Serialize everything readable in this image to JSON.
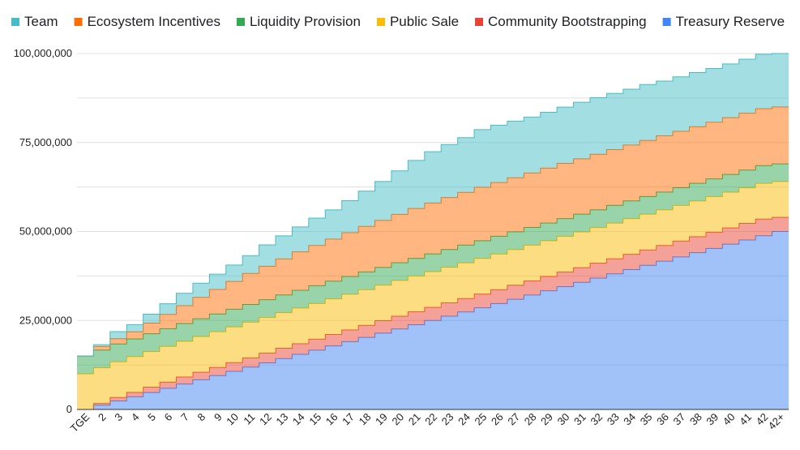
{
  "chart_data": {
    "type": "area",
    "stacked": true,
    "step": true,
    "categories": [
      "TGE",
      "2",
      "3",
      "4",
      "5",
      "6",
      "7",
      "8",
      "9",
      "10",
      "11",
      "12",
      "13",
      "14",
      "15",
      "16",
      "17",
      "18",
      "19",
      "20",
      "21",
      "22",
      "23",
      "24",
      "25",
      "26",
      "27",
      "28",
      "29",
      "30",
      "31",
      "32",
      "33",
      "34",
      "35",
      "36",
      "37",
      "38",
      "39",
      "40",
      "41",
      "42",
      "42+"
    ],
    "ylim": [
      0,
      100000000
    ],
    "yticks": [
      {
        "value": 0,
        "label": "0"
      },
      {
        "value": 25000000,
        "label": "25,000,000"
      },
      {
        "value": 50000000,
        "label": "50,000,000"
      },
      {
        "value": 75000000,
        "label": "75,000,000"
      },
      {
        "value": 100000000,
        "label": "100,000,000"
      }
    ],
    "grid": true,
    "legend_position": "top",
    "xlabel": "",
    "ylabel": "",
    "series": [
      {
        "name": "Treasury Reserve",
        "color": "#4285f4",
        "values": [
          0,
          1190476,
          2380952,
          3571429,
          4761905,
          5952381,
          7142857,
          8333333,
          9523810,
          10714286,
          11904762,
          13095238,
          14285714,
          15476190,
          16666667,
          17857143,
          19047619,
          20238095,
          21428571,
          22619048,
          23809524,
          25000000,
          26190476,
          27380952,
          28571429,
          29761905,
          30952381,
          32142857,
          33333333,
          34523810,
          35714286,
          36904762,
          38095238,
          39285714,
          40476190,
          41666667,
          42857143,
          44047619,
          45238095,
          46428571,
          47619048,
          48809524,
          50000000
        ]
      },
      {
        "name": "Community Bootstrapping",
        "color": "#ea4335",
        "values": [
          0,
          500000,
          1000000,
          1250000,
          1500000,
          1750000,
          2000000,
          2150000,
          2300000,
          2450000,
          2600000,
          2750000,
          2900000,
          3000000,
          3100000,
          3200000,
          3300000,
          3400000,
          3500000,
          3600000,
          3650000,
          3700000,
          3750000,
          3800000,
          3850000,
          3900000,
          3950000,
          4000000,
          4050000,
          4100000,
          4150000,
          4200000,
          4250000,
          4300000,
          4350000,
          4400000,
          4450000,
          4500000,
          4550000,
          4600000,
          4650000,
          4700000,
          4000000
        ]
      },
      {
        "name": "Public Sale",
        "color": "#fbbc04",
        "values": [
          10000000,
          10000000,
          10000000,
          10000000,
          10000000,
          10000000,
          10000000,
          10000000,
          10000000,
          10000000,
          10000000,
          10000000,
          10000000,
          10000000,
          10000000,
          10000000,
          10000000,
          10000000,
          10000000,
          10000000,
          10000000,
          10000000,
          10000000,
          10000000,
          10000000,
          10000000,
          10000000,
          10000000,
          10000000,
          10000000,
          10000000,
          10000000,
          10000000,
          10000000,
          10000000,
          10000000,
          10000000,
          10000000,
          10000000,
          10000000,
          10000000,
          10000000,
          10000000
        ]
      },
      {
        "name": "Liquidity Provision",
        "color": "#34a853",
        "values": [
          5000000,
          5000000,
          5000000,
          5000000,
          5000000,
          5000000,
          5000000,
          5000000,
          5000000,
          5000000,
          5000000,
          5000000,
          5000000,
          5000000,
          5000000,
          5000000,
          5000000,
          5000000,
          5000000,
          5000000,
          5000000,
          5000000,
          5000000,
          5000000,
          5000000,
          5000000,
          5000000,
          5000000,
          5000000,
          5000000,
          5000000,
          5000000,
          5000000,
          5000000,
          5000000,
          5000000,
          5000000,
          5000000,
          5000000,
          5000000,
          5000000,
          5000000,
          5000000
        ]
      },
      {
        "name": "Ecosystem Incentives",
        "color": "#ff6d01",
        "values": [
          0,
          1000000,
          1500000,
          2000000,
          3000000,
          4000000,
          5000000,
          6000000,
          6900000,
          7800000,
          8700000,
          9400000,
          10100000,
          10800000,
          11300000,
          11800000,
          12300000,
          12800000,
          13200000,
          13600000,
          14000000,
          14300000,
          14600000,
          14800000,
          15000000,
          15100000,
          15200000,
          15300000,
          15400000,
          15500000,
          15550000,
          15600000,
          15650000,
          15700000,
          15750000,
          15800000,
          15850000,
          15900000,
          15900000,
          15950000,
          15950000,
          16000000,
          16000000
        ]
      },
      {
        "name": "Team",
        "color": "#46bdc6",
        "values": [
          0,
          500000,
          2000000,
          2000000,
          2500000,
          3000000,
          3500000,
          4000000,
          4300000,
          4600000,
          5000000,
          6000000,
          6500000,
          7000000,
          7700000,
          8200000,
          9000000,
          9900000,
          10900000,
          12200000,
          13500000,
          14400000,
          14900000,
          15400000,
          16200000,
          16100000,
          15900000,
          15700000,
          15700000,
          15800000,
          15900000,
          15900000,
          15800000,
          15700000,
          15700000,
          15400000,
          15300000,
          15200000,
          15100000,
          15100000,
          15200000,
          15300000,
          15000000
        ]
      }
    ]
  }
}
